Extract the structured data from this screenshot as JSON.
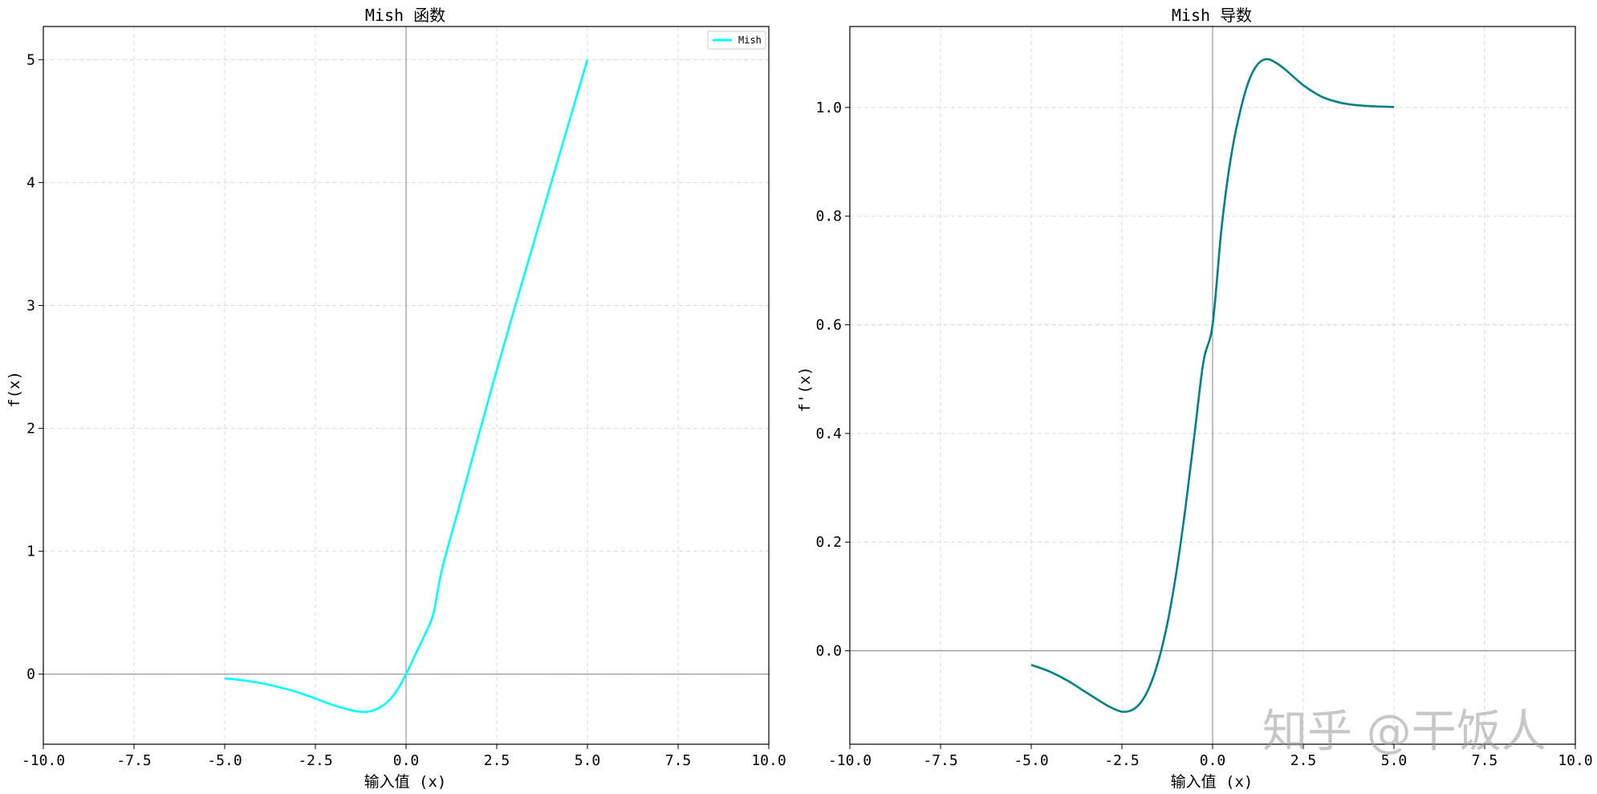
{
  "watermark": "知乎 @干饭人",
  "colors": {
    "mish": "#00ffff",
    "derivative": "#008080",
    "grid": "#d9d9d9",
    "zero_line": "#808080"
  },
  "chart_data": [
    {
      "type": "line",
      "title": "Mish 函数",
      "xlabel": "输入值 (x)",
      "ylabel": "f(x)",
      "xlim": [
        -10,
        10
      ],
      "ylim": [
        -0.57,
        5.27
      ],
      "xticks": [
        "-10.0",
        "-7.5",
        "-5.0",
        "-2.5",
        "0.0",
        "2.5",
        "5.0",
        "7.5",
        "10.0"
      ],
      "yticks": [
        "0",
        "1",
        "2",
        "3",
        "4",
        "5"
      ],
      "grid": true,
      "legend": {
        "position": "top-right",
        "entries": [
          "Mish"
        ]
      },
      "series": [
        {
          "name": "Mish",
          "color": "#00ffff",
          "x": [
            -5.0,
            -4.5,
            -4.0,
            -3.5,
            -3.0,
            -2.5,
            -2.0,
            -1.5,
            -1.25,
            -1.0,
            -0.75,
            -0.5,
            -0.25,
            0.0,
            0.25,
            0.5,
            0.75,
            1.0,
            1.5,
            2.0,
            2.5,
            3.0,
            3.5,
            4.0,
            4.5,
            5.0
          ],
          "y": [
            -0.034,
            -0.05,
            -0.073,
            -0.106,
            -0.146,
            -0.198,
            -0.253,
            -0.294,
            -0.306,
            -0.303,
            -0.275,
            -0.222,
            -0.132,
            0.0,
            0.156,
            0.311,
            0.489,
            0.865,
            1.401,
            1.944,
            2.475,
            2.986,
            3.491,
            3.997,
            4.499,
            5.0
          ]
        }
      ]
    },
    {
      "type": "line",
      "title": "Mish 导数",
      "xlabel": "输入值 (x)",
      "ylabel": "f'(x)",
      "xlim": [
        -10,
        10
      ],
      "ylim": [
        -0.172,
        1.149
      ],
      "xticks": [
        "-10.0",
        "-7.5",
        "-5.0",
        "-2.5",
        "0.0",
        "2.5",
        "5.0",
        "7.5",
        "10.0"
      ],
      "yticks": [
        "0.0",
        "0.2",
        "0.4",
        "0.6",
        "0.8",
        "1.0"
      ],
      "grid": true,
      "series": [
        {
          "color": "#008080",
          "x": [
            -5.0,
            -4.5,
            -4.0,
            -3.5,
            -3.0,
            -2.75,
            -2.5,
            -2.25,
            -2.0,
            -1.75,
            -1.5,
            -1.25,
            -1.0,
            -0.75,
            -0.5,
            -0.25,
            0.0,
            0.25,
            0.5,
            0.75,
            1.0,
            1.25,
            1.5,
            1.75,
            2.0,
            2.5,
            3.0,
            3.5,
            4.0,
            4.5,
            5.0
          ],
          "y": [
            -0.026,
            -0.038,
            -0.055,
            -0.076,
            -0.097,
            -0.106,
            -0.112,
            -0.11,
            -0.097,
            -0.068,
            -0.02,
            0.049,
            0.144,
            0.262,
            0.398,
            0.533,
            0.6,
            0.78,
            0.906,
            0.99,
            1.049,
            1.08,
            1.089,
            1.082,
            1.07,
            1.041,
            1.02,
            1.009,
            1.004,
            1.002,
            1.001
          ]
        }
      ]
    }
  ]
}
